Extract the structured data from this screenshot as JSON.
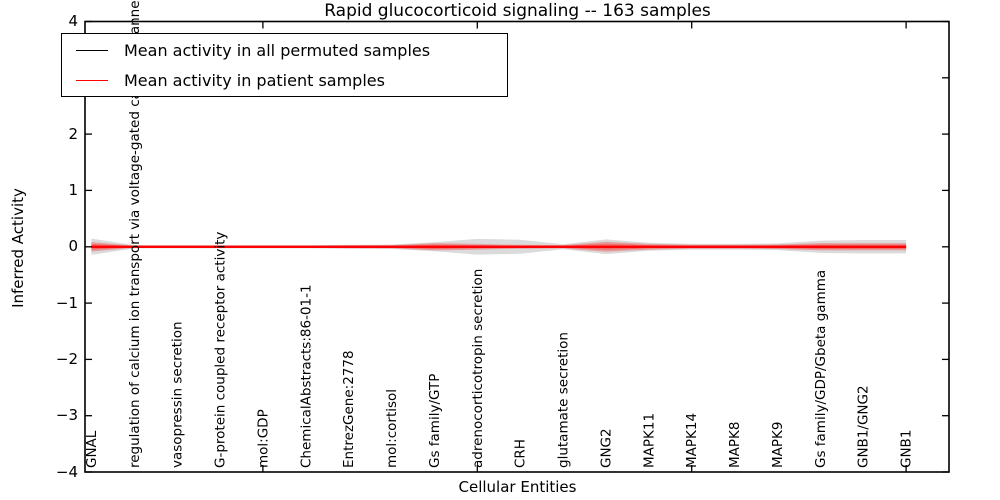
{
  "title": "Rapid glucocorticoid signaling -- 163 samples",
  "axes": {
    "ylabel": "Inferred Activity",
    "xlabel": "Cellular Entities",
    "ytick_labels": [
      "4",
      "3",
      "2",
      "1",
      "0",
      "−1",
      "−2",
      "−3",
      "−4"
    ],
    "ytick_values": [
      4,
      3,
      2,
      1,
      0,
      -1,
      -2,
      -3,
      -4
    ]
  },
  "legend": {
    "items": [
      {
        "label": "Mean activity in all permuted samples",
        "color": "#000000"
      },
      {
        "label": "Mean activity in patient samples",
        "color": "#ff0000"
      }
    ]
  },
  "chart_data": {
    "type": "line",
    "title": "Rapid glucocorticoid signaling -- 163 samples",
    "xlabel": "Cellular Entities",
    "ylabel": "Inferred Activity",
    "ylim": [
      -4,
      4
    ],
    "xlim": [
      0.85,
      21.0
    ],
    "xticks_numeric": [
      5,
      10,
      15,
      20
    ],
    "grid": false,
    "legend_position": "upper left",
    "x_positions": [
      1,
      2,
      3,
      4,
      5,
      6,
      7,
      8,
      9,
      10,
      11,
      12,
      13,
      14,
      15,
      16,
      17,
      18,
      19,
      20
    ],
    "x_categories": [
      "GNAL",
      "regulation of calcium ion transport via voltage-gated calcium channel activity",
      "vasopressin secretion",
      "G-protein coupled receptor activity",
      "mol:GDP",
      "ChemicalAbstracts:86-01-1",
      "EntrezGene:2778",
      "mol:cortisol",
      "Gs family/GTP",
      "adrenocorticotropin secretion",
      "CRH",
      "glutamate secretion",
      "GNG2",
      "MAPK11",
      "MAPK14",
      "MAPK8",
      "MAPK9",
      "Gs family/GDP/Gbeta gamma",
      "GNB1/GNG2",
      "GNB1"
    ],
    "series": [
      {
        "name": "Mean activity in all permuted samples",
        "color": "#000000",
        "style": "dashed",
        "values": [
          0,
          0,
          0,
          0,
          0,
          0,
          0,
          0,
          0,
          0,
          0,
          0,
          0,
          0,
          0,
          0,
          0,
          0,
          0,
          0
        ]
      },
      {
        "name": "Mean activity in patient samples",
        "color": "#ff0000",
        "style": "solid",
        "values": [
          0,
          0,
          0,
          0,
          0,
          0,
          0,
          0,
          0,
          0,
          0,
          0,
          0,
          0,
          0,
          0,
          0,
          0,
          0,
          0
        ]
      }
    ],
    "bands": [
      {
        "name": "permuted-sample-spread",
        "color": "#999999",
        "opacity": 0.35,
        "halfwidths": [
          0.145,
          0.03,
          0.03,
          0.03,
          0.03,
          0.03,
          0.035,
          0.04,
          0.08,
          0.14,
          0.125,
          0.045,
          0.13,
          0.07,
          0.05,
          0.05,
          0.06,
          0.11,
          0.12,
          0.12
        ]
      },
      {
        "name": "patient-sample-spread",
        "color": "#ff0000",
        "opacity": 0.28,
        "halfwidths": [
          0.085,
          0.02,
          0.02,
          0.02,
          0.02,
          0.02,
          0.025,
          0.03,
          0.065,
          0.05,
          0.035,
          0.03,
          0.09,
          0.05,
          0.035,
          0.035,
          0.04,
          0.065,
          0.065,
          0.065
        ]
      },
      {
        "name": "patient-sample-core-spread",
        "color": "#ff0000",
        "opacity": 0.3,
        "halfwidths": [
          0.05,
          0.012,
          0.012,
          0.012,
          0.012,
          0.012,
          0.015,
          0.018,
          0.04,
          0.03,
          0.02,
          0.018,
          0.055,
          0.03,
          0.02,
          0.02,
          0.025,
          0.04,
          0.04,
          0.04
        ]
      }
    ]
  }
}
